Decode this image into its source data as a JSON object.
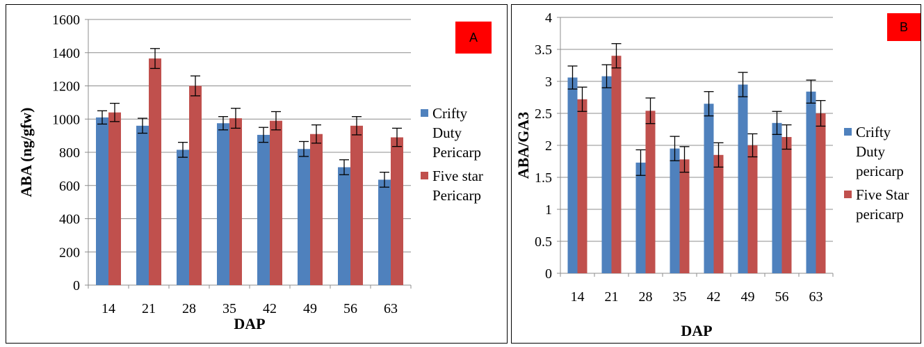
{
  "chart_data": [
    {
      "panel_label": "A",
      "type": "bar",
      "categories": [
        "14",
        "21",
        "28",
        "35",
        "42",
        "49",
        "56",
        "63"
      ],
      "series": [
        {
          "name": "Crifty Duty Pericarp",
          "legend_lines": [
            "Crifty",
            "Duty",
            "Pericarp"
          ],
          "color": "#4F81BD",
          "values": [
            1010,
            960,
            815,
            975,
            905,
            820,
            710,
            635
          ],
          "errors": [
            40,
            45,
            45,
            40,
            45,
            45,
            45,
            45
          ]
        },
        {
          "name": "Five star Pericarp",
          "legend_lines": [
            "Five star",
            "Pericarp"
          ],
          "color": "#C0504D",
          "values": [
            1040,
            1365,
            1200,
            1005,
            990,
            910,
            960,
            890
          ],
          "errors": [
            55,
            60,
            60,
            60,
            55,
            55,
            55,
            55
          ]
        }
      ],
      "xlabel": "DAP",
      "ylabel": "ABA (ng/gfw)",
      "ylim": [
        0,
        1600
      ],
      "yticks": [
        "0",
        "200",
        "400",
        "600",
        "800",
        "1000",
        "1200",
        "1400",
        "1600"
      ],
      "grid": true,
      "legend": "right"
    },
    {
      "panel_label": "B",
      "type": "bar",
      "categories": [
        "14",
        "21",
        "28",
        "35",
        "42",
        "49",
        "56",
        "63"
      ],
      "series": [
        {
          "name": "Crifty Duty pericarp",
          "legend_lines": [
            "Crifty",
            "Duty",
            "pericarp"
          ],
          "color": "#4F81BD",
          "values": [
            3.06,
            3.08,
            1.73,
            1.95,
            2.65,
            2.95,
            2.35,
            2.84
          ],
          "errors": [
            0.18,
            0.18,
            0.2,
            0.19,
            0.19,
            0.19,
            0.18,
            0.18
          ]
        },
        {
          "name": "Five Star pericarp",
          "legend_lines": [
            "Five Star",
            "pericarp"
          ],
          "color": "#C0504D",
          "values": [
            2.72,
            3.4,
            2.54,
            1.78,
            1.85,
            2.0,
            2.13,
            2.5
          ],
          "errors": [
            0.19,
            0.19,
            0.2,
            0.2,
            0.19,
            0.18,
            0.19,
            0.2
          ]
        }
      ],
      "xlabel": "DAP",
      "ylabel": "ABA/GA3",
      "ylim": [
        0,
        4
      ],
      "yticks": [
        "0",
        "0.5",
        "1",
        "1.5",
        "2",
        "2.5",
        "3",
        "3.5",
        "4"
      ],
      "grid": true,
      "legend": "right"
    }
  ]
}
